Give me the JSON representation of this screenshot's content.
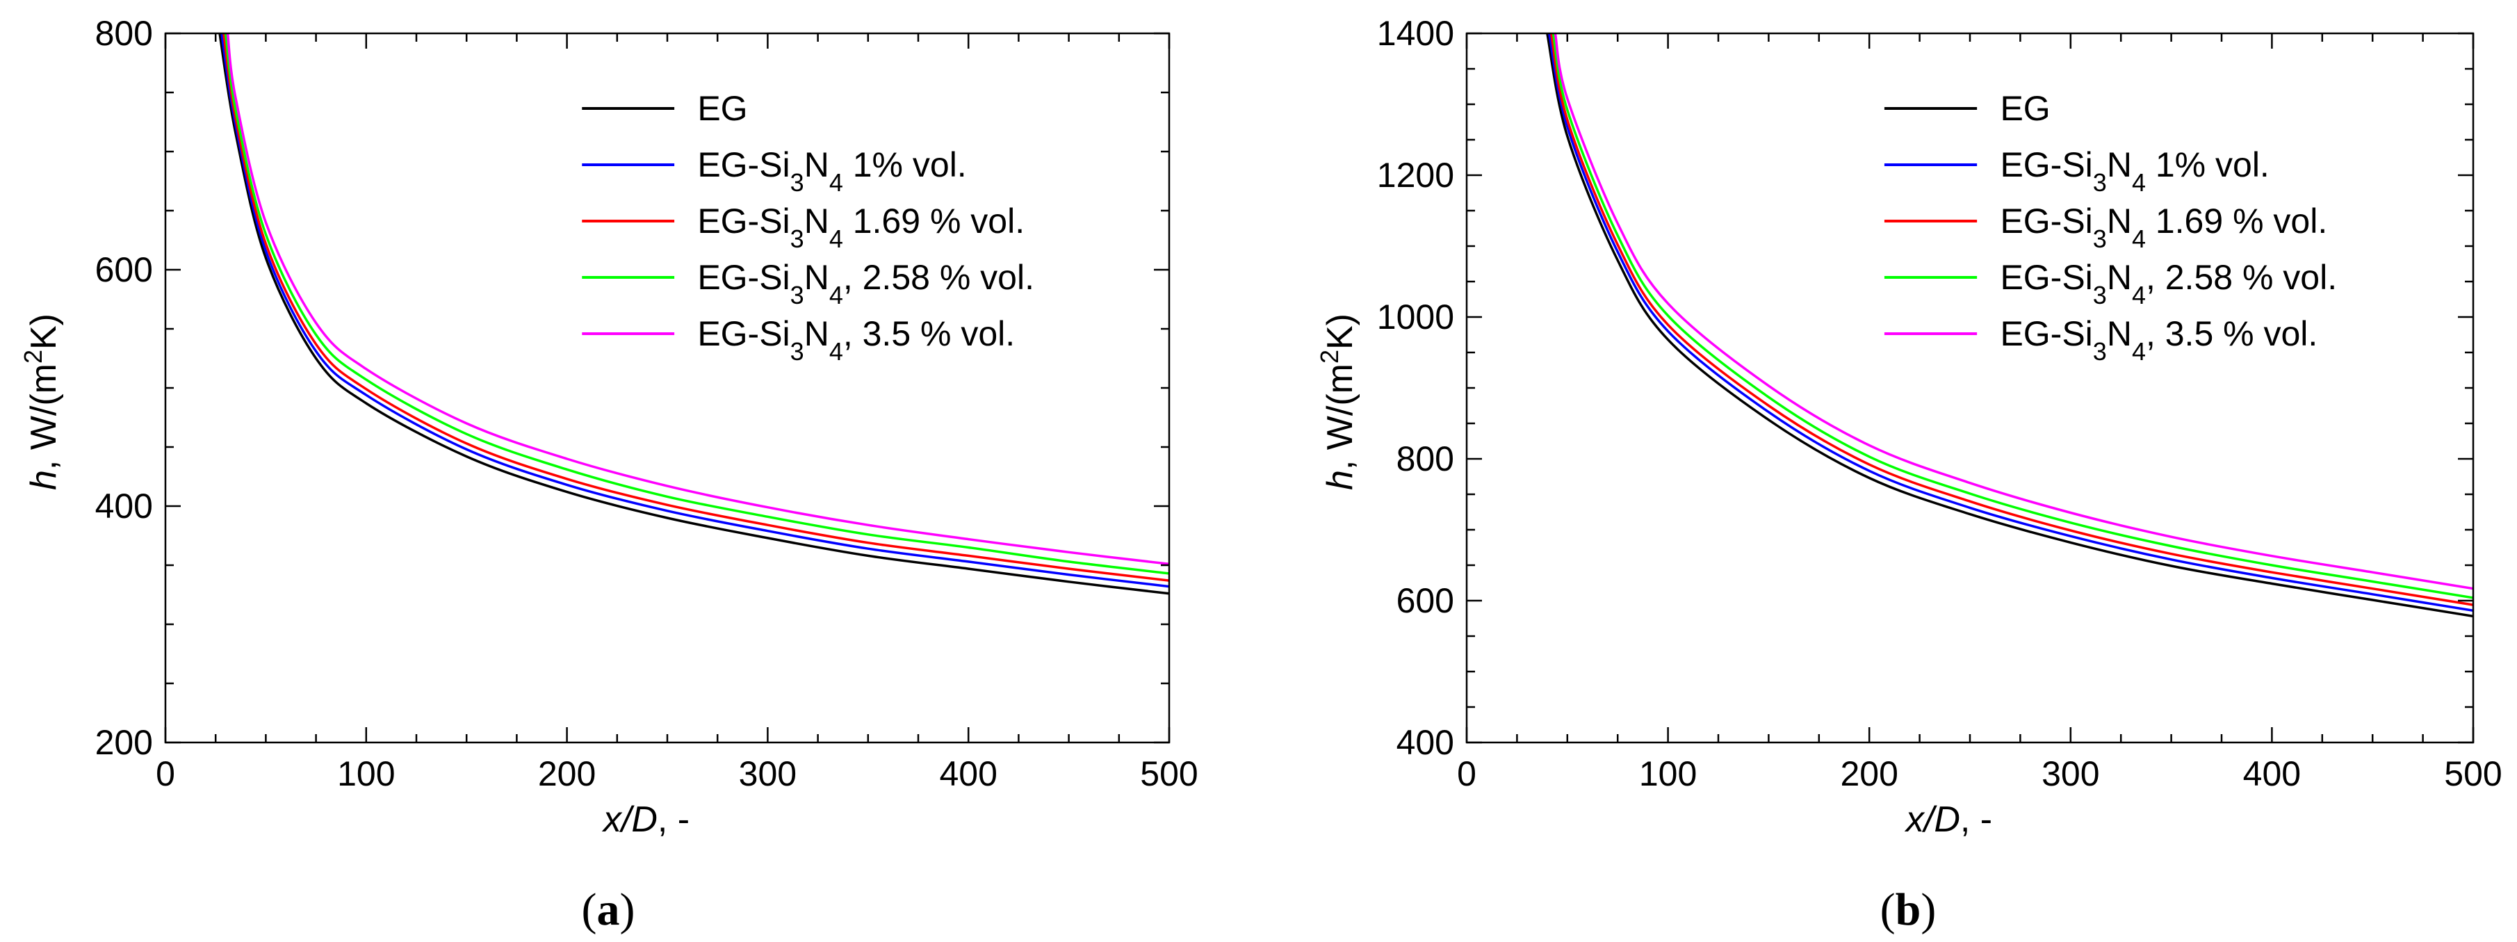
{
  "chart_data": [
    {
      "type": "line",
      "panel_label": "(a)",
      "xlabel": "x/D, -",
      "ylabel": "h, W/(m2K)",
      "xlim": [
        0,
        500
      ],
      "ylim": [
        200,
        800
      ],
      "xticks": [
        0,
        100,
        200,
        300,
        400,
        500
      ],
      "yticks": [
        200,
        400,
        600,
        800
      ],
      "legend_position": "top-right",
      "series": [
        {
          "name": "EG",
          "color": "#000000",
          "x": [
            27,
            35,
            50,
            75,
            100,
            150,
            200,
            250,
            300,
            350,
            400,
            450,
            500
          ],
          "y": [
            800,
            715,
            610,
            525,
            487,
            442,
            412,
            390,
            373,
            358,
            347,
            336,
            326
          ]
        },
        {
          "name": "EG-Si3N4 1% vol.",
          "color": "#0000ff",
          "x": [
            28,
            35,
            50,
            75,
            100,
            150,
            200,
            250,
            300,
            350,
            400,
            450,
            500
          ],
          "y": [
            800,
            722,
            616,
            531,
            494,
            448,
            418,
            396,
            379,
            364,
            353,
            342,
            332
          ]
        },
        {
          "name": "EG-Si3N4 1.69 % vol.",
          "color": "#ff0000",
          "x": [
            29,
            35,
            50,
            75,
            100,
            150,
            200,
            250,
            300,
            350,
            400,
            450,
            500
          ],
          "y": [
            800,
            728,
            622,
            537,
            499,
            453,
            423,
            401,
            384,
            369,
            358,
            347,
            337
          ]
        },
        {
          "name": "EG-Si3N4, 2.58 % vol.",
          "color": "#00ff00",
          "x": [
            30,
            35,
            50,
            75,
            100,
            150,
            200,
            250,
            300,
            350,
            400,
            450,
            500
          ],
          "y": [
            800,
            735,
            630,
            545,
            507,
            461,
            431,
            408,
            391,
            376,
            365,
            353,
            343
          ]
        },
        {
          "name": "EG-Si3N4, 3.5 % vol.",
          "color": "#ff00ff",
          "x": [
            31,
            35,
            50,
            75,
            100,
            150,
            200,
            250,
            300,
            350,
            400,
            450,
            500
          ],
          "y": [
            800,
            745,
            640,
            555,
            516,
            470,
            440,
            417,
            399,
            384,
            372,
            361,
            351
          ]
        }
      ]
    },
    {
      "type": "line",
      "panel_label": "(b)",
      "xlabel": "x/D, -",
      "ylabel": "h, W/(m2K)",
      "xlim": [
        0,
        500
      ],
      "ylim": [
        400,
        1400
      ],
      "xticks": [
        0,
        100,
        200,
        300,
        400,
        500
      ],
      "yticks": [
        400,
        600,
        800,
        1000,
        1200,
        1400
      ],
      "legend_position": "top-right",
      "series": [
        {
          "name": "EG",
          "color": "#000000",
          "x": [
            40,
            50,
            75,
            100,
            150,
            200,
            250,
            300,
            350,
            400,
            450,
            500
          ],
          "y": [
            1400,
            1255,
            1080,
            968,
            855,
            773,
            722,
            682,
            649,
            624,
            601,
            578
          ]
        },
        {
          "name": "EG-Si3N4 1% vol.",
          "color": "#0000ff",
          "x": [
            41,
            50,
            75,
            100,
            150,
            200,
            250,
            300,
            350,
            400,
            450,
            500
          ],
          "y": [
            1400,
            1268,
            1092,
            980,
            866,
            783,
            731,
            691,
            658,
            632,
            609,
            586
          ]
        },
        {
          "name": "EG-Si3N4 1.69 % vol.",
          "color": "#ff0000",
          "x": [
            42,
            50,
            75,
            100,
            150,
            200,
            250,
            300,
            350,
            400,
            450,
            500
          ],
          "y": [
            1400,
            1278,
            1102,
            989,
            875,
            792,
            740,
            699,
            666,
            640,
            617,
            594
          ]
        },
        {
          "name": "EG-Si3N4, 2.58 % vol.",
          "color": "#00ff00",
          "x": [
            43,
            50,
            75,
            100,
            150,
            200,
            250,
            300,
            350,
            400,
            450,
            500
          ],
          "y": [
            1400,
            1292,
            1115,
            1002,
            887,
            803,
            751,
            710,
            677,
            650,
            627,
            604
          ]
        },
        {
          "name": "EG-Si3N4, 3.5 % vol.",
          "color": "#ff00ff",
          "x": [
            44,
            50,
            75,
            100,
            150,
            200,
            250,
            300,
            350,
            400,
            450,
            500
          ],
          "y": [
            1400,
            1308,
            1132,
            1019,
            903,
            819,
            766,
            724,
            690,
            663,
            640,
            617
          ]
        }
      ]
    }
  ]
}
